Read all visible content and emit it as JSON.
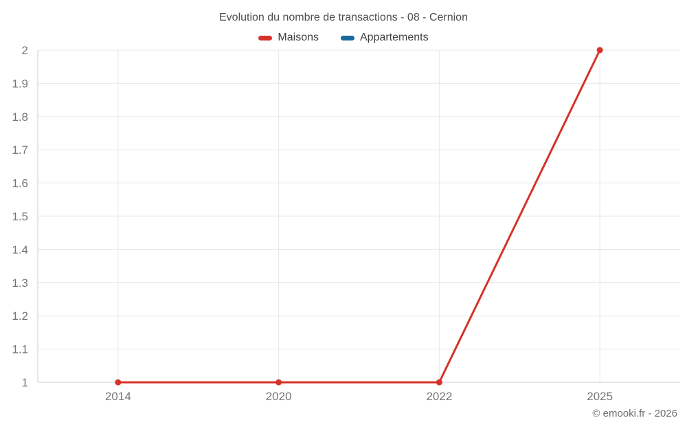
{
  "copyright": "© emooki.fr - 2026",
  "colors": {
    "grid": "#e7e7e7",
    "axis": "#cdcdcd",
    "tick_text": "#757575",
    "title_text": "#4e4e4e",
    "legend_text": "#3f3f3f"
  },
  "chart_data": {
    "type": "line",
    "title": "Evolution du nombre de transactions - 08 - Cernion",
    "categories": [
      "2014",
      "2020",
      "2022",
      "2025"
    ],
    "series": [
      {
        "name": "Maisons",
        "color": "#d63229",
        "values": [
          1,
          1,
          1,
          2
        ]
      },
      {
        "name": "Appartements",
        "color": "#1a6a9c",
        "values": []
      }
    ],
    "xlabel": "",
    "ylabel": "",
    "ylim": [
      1,
      2
    ],
    "y_ticks": [
      "1",
      "1.1",
      "1.2",
      "1.3",
      "1.4",
      "1.5",
      "1.6",
      "1.7",
      "1.8",
      "1.9",
      "2"
    ],
    "grid": true,
    "legend_position": "top",
    "point_radius": 4.5,
    "line_width": 3
  }
}
